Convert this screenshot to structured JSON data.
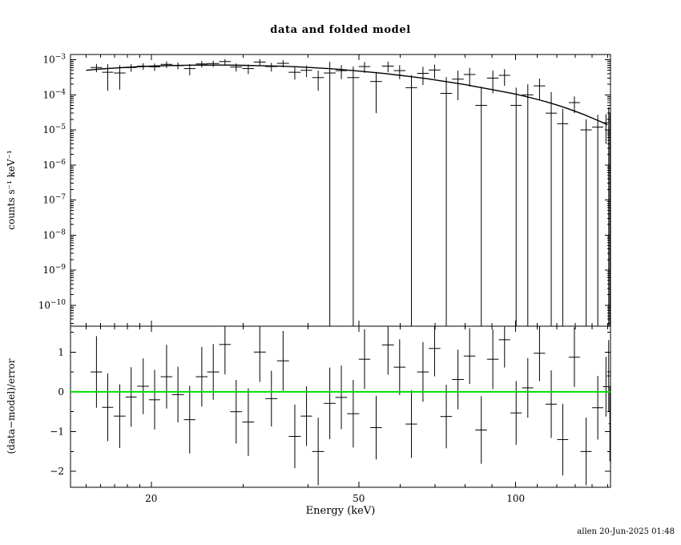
{
  "chart_data": {
    "type": "scatter",
    "title": "data and folded model",
    "xlabel": "Energy (keV)",
    "ylabel_top": "counts s⁻¹ keV⁻¹",
    "ylabel_bottom": "(data−model)/error",
    "footer": "allen 20-Jun-2025 01:48",
    "x_scale": "log",
    "x_range": [
      14,
      152
    ],
    "x_ticks": [
      20,
      50,
      100
    ],
    "grid": false,
    "legend": "none",
    "top_panel": {
      "y_scale": "log",
      "y_range_exp": [
        -10.6,
        -2.85
      ],
      "y_tick_exponents": [
        -3,
        -4,
        -5,
        -6,
        -7,
        -8,
        -9,
        -10
      ],
      "data_color": "#000000",
      "model_color": "#000000",
      "model": [
        [
          15,
          0.0005
        ],
        [
          16,
          0.000545
        ],
        [
          17,
          0.00058
        ],
        [
          18,
          0.00061
        ],
        [
          19,
          0.000635
        ],
        [
          20,
          0.00066
        ],
        [
          22,
          0.000685
        ],
        [
          24,
          0.0007
        ],
        [
          26,
          0.000705
        ],
        [
          28,
          0.000705
        ],
        [
          30,
          0.000695
        ],
        [
          32,
          0.00068
        ],
        [
          34,
          0.000665
        ],
        [
          36,
          0.00065
        ],
        [
          38,
          0.00063
        ],
        [
          40,
          0.000605
        ],
        [
          42,
          0.00058
        ],
        [
          44,
          0.000555
        ],
        [
          46,
          0.00053
        ],
        [
          48,
          0.0005
        ],
        [
          50,
          0.000475
        ],
        [
          53,
          0.00044
        ],
        [
          56,
          0.000405
        ],
        [
          60,
          0.00036
        ],
        [
          64,
          0.00032
        ],
        [
          68,
          0.000285
        ],
        [
          72,
          0.00025
        ],
        [
          76,
          0.00022
        ],
        [
          80,
          0.000195
        ],
        [
          84,
          0.00017
        ],
        [
          88,
          0.00015
        ],
        [
          92,
          0.000133
        ],
        [
          96,
          0.000118
        ],
        [
          100,
          0.000105
        ],
        [
          105,
          8.8e-05
        ],
        [
          110,
          7.4e-05
        ],
        [
          115,
          6.2e-05
        ],
        [
          120,
          5.1e-05
        ],
        [
          125,
          4.2e-05
        ],
        [
          130,
          3.4e-05
        ],
        [
          135,
          2.75e-05
        ],
        [
          140,
          2.2e-05
        ],
        [
          145,
          1.75e-05
        ],
        [
          150,
          1.4e-05
        ]
      ],
      "points": [
        [
          15.7,
          0.4,
          0.0006,
          0.00016
        ],
        [
          16.5,
          0.4,
          0.00044,
          0.00031
        ],
        [
          17.4,
          0.45,
          0.00042,
          0.00028
        ],
        [
          18.3,
          0.45,
          0.0006,
          0.00015
        ],
        [
          19.3,
          0.5,
          0.00066,
          0.00014
        ],
        [
          20.3,
          0.5,
          0.00063,
          0.00015
        ],
        [
          21.4,
          0.55,
          0.00074,
          0.00016
        ],
        [
          22.5,
          0.6,
          0.00068,
          0.00015
        ],
        [
          23.7,
          0.6,
          0.00056,
          0.0002
        ],
        [
          25.0,
          0.65,
          0.00076,
          0.00016
        ],
        [
          26.3,
          0.7,
          0.00078,
          0.00016
        ],
        [
          27.7,
          0.7,
          0.00089,
          0.00016
        ],
        [
          29.1,
          0.75,
          0.00062,
          0.00016
        ],
        [
          30.7,
          0.8,
          0.00056,
          0.00017
        ],
        [
          32.3,
          0.85,
          0.00086,
          0.00018
        ],
        [
          34.0,
          0.9,
          0.00064,
          0.00018
        ],
        [
          35.8,
          0.95,
          0.00079,
          0.00018
        ],
        [
          37.7,
          1.0,
          0.00044,
          0.00017
        ],
        [
          39.7,
          1.0,
          0.0005,
          0.00018
        ],
        [
          41.8,
          1.1,
          0.00031,
          0.00018
        ],
        [
          44.0,
          1.15,
          0.00042,
          0.00045
        ],
        [
          46.3,
          1.2,
          0.00049,
          0.00021
        ],
        [
          48.8,
          1.3,
          0.00031,
          0.00033
        ],
        [
          51.3,
          1.3,
          0.00064,
          0.00022
        ],
        [
          54.0,
          1.4,
          0.00024,
          0.00021
        ],
        [
          56.9,
          1.5,
          0.00066,
          0.00022
        ],
        [
          59.9,
          1.55,
          0.00049,
          0.00021
        ],
        [
          63.1,
          1.6,
          0.00016,
          0.00021
        ],
        [
          66.4,
          1.7,
          0.00041,
          0.00022
        ],
        [
          69.9,
          1.8,
          0.00051,
          0.00022
        ],
        [
          73.6,
          1.9,
          0.00011,
          0.00021
        ],
        [
          77.5,
          2.0,
          0.00028,
          0.00021
        ],
        [
          81.6,
          2.1,
          0.00038,
          0.00021
        ],
        [
          85.9,
          2.2,
          5e-05,
          0.00012
        ],
        [
          90.4,
          2.3,
          0.0003,
          0.00019
        ],
        [
          95.2,
          2.4,
          0.00036,
          0.00018
        ],
        [
          100.2,
          2.5,
          5e-05,
          0.00011
        ],
        [
          105.5,
          2.6,
          0.0001,
          0.0001
        ],
        [
          111.1,
          2.8,
          0.00018,
          0.00011
        ],
        [
          117.0,
          2.9,
          3e-05,
          9e-05
        ],
        [
          123.1,
          3.0,
          1.5e-05,
          2.5e-05
        ],
        [
          129.6,
          3.2,
          6e-05,
          3e-05
        ],
        [
          136.5,
          3.4,
          1e-05,
          1e-05
        ],
        [
          143.7,
          3.5,
          1.2e-05,
          1.5e-05
        ],
        [
          149.0,
          2.0,
          1.6e-05,
          1.2e-05
        ],
        [
          150.8,
          1.2,
          2e-05,
          2.5e-05
        ],
        [
          151.6,
          0.8,
          1e-05,
          2e-05
        ]
      ]
    },
    "bottom_panel": {
      "y_scale": "linear",
      "y_range": [
        -2.4,
        1.65
      ],
      "y_ticks": [
        -2,
        -1,
        0,
        1
      ],
      "zero_line_color": "#00dd00",
      "points": [
        [
          15.7,
          0.4,
          0.5,
          0.9
        ],
        [
          16.5,
          0.4,
          -0.39,
          0.85
        ],
        [
          17.4,
          0.45,
          -0.61,
          0.8
        ],
        [
          18.3,
          0.45,
          -0.13,
          0.75
        ],
        [
          19.3,
          0.5,
          0.14,
          0.7
        ],
        [
          20.3,
          0.5,
          -0.2,
          0.75
        ],
        [
          21.4,
          0.55,
          0.38,
          0.8
        ],
        [
          22.5,
          0.6,
          -0.07,
          0.7
        ],
        [
          23.7,
          0.6,
          -0.7,
          0.85
        ],
        [
          25.0,
          0.65,
          0.38,
          0.75
        ],
        [
          26.3,
          0.7,
          0.5,
          0.7
        ],
        [
          27.7,
          0.7,
          1.19,
          0.75
        ],
        [
          29.1,
          0.75,
          -0.5,
          0.8
        ],
        [
          30.7,
          0.8,
          -0.76,
          0.85
        ],
        [
          32.3,
          0.85,
          1.0,
          0.75
        ],
        [
          34.0,
          0.9,
          -0.17,
          0.7
        ],
        [
          35.8,
          0.95,
          0.78,
          0.75
        ],
        [
          37.7,
          1.0,
          -1.12,
          0.8
        ],
        [
          39.7,
          1.0,
          -0.61,
          0.75
        ],
        [
          41.8,
          1.1,
          -1.5,
          0.85
        ],
        [
          44.0,
          1.15,
          -0.29,
          0.9
        ],
        [
          46.3,
          1.2,
          -0.14,
          0.8
        ],
        [
          48.8,
          1.3,
          -0.55,
          0.85
        ],
        [
          51.3,
          1.3,
          0.82,
          0.75
        ],
        [
          54.0,
          1.4,
          -0.9,
          0.8
        ],
        [
          56.9,
          1.5,
          1.18,
          0.75
        ],
        [
          59.9,
          1.55,
          0.62,
          0.7
        ],
        [
          63.1,
          1.6,
          -0.81,
          0.85
        ],
        [
          66.4,
          1.7,
          0.5,
          0.75
        ],
        [
          69.9,
          1.8,
          1.09,
          0.7
        ],
        [
          73.6,
          1.9,
          -0.62,
          0.8
        ],
        [
          77.5,
          2.0,
          0.31,
          0.75
        ],
        [
          81.6,
          2.1,
          0.9,
          0.7
        ],
        [
          85.9,
          2.2,
          -0.96,
          0.85
        ],
        [
          90.4,
          2.3,
          0.82,
          0.75
        ],
        [
          95.2,
          2.4,
          1.31,
          0.7
        ],
        [
          100.2,
          2.5,
          -0.53,
          0.8
        ],
        [
          105.5,
          2.6,
          0.1,
          0.75
        ],
        [
          111.1,
          2.8,
          0.97,
          0.7
        ],
        [
          117.0,
          2.9,
          -0.31,
          0.85
        ],
        [
          123.1,
          3.0,
          -1.2,
          0.9
        ],
        [
          129.6,
          3.2,
          0.87,
          0.75
        ],
        [
          136.5,
          3.4,
          -1.5,
          0.85
        ],
        [
          143.7,
          3.5,
          -0.4,
          0.8
        ],
        [
          149.0,
          2.0,
          0.13,
          0.75
        ],
        [
          150.8,
          1.2,
          0.4,
          0.9
        ],
        [
          151.6,
          0.8,
          -0.8,
          0.95
        ]
      ]
    }
  }
}
